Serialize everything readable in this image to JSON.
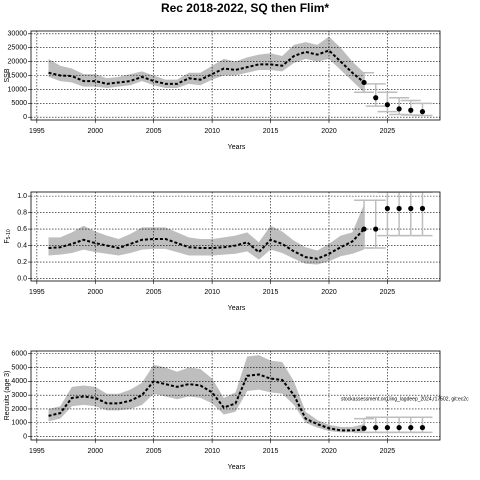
{
  "title": "Rec 2018-2022, SQ then Flim*",
  "chart_data": [
    {
      "type": "line",
      "ylabel": "SSB",
      "xlabel": "Years",
      "x": [
        1996,
        1997,
        1998,
        1999,
        2000,
        2001,
        2002,
        2003,
        2004,
        2005,
        2006,
        2007,
        2008,
        2009,
        2010,
        2011,
        2012,
        2013,
        2014,
        2015,
        2016,
        2017,
        2018,
        2019,
        2020,
        2021,
        2022,
        2023
      ],
      "values": [
        16000,
        15000,
        14800,
        13000,
        13000,
        12000,
        12500,
        13000,
        14500,
        13000,
        12000,
        12000,
        14000,
        13500,
        15500,
        17500,
        17000,
        18000,
        19000,
        19000,
        18500,
        22000,
        23500,
        22500,
        24000,
        20000,
        16000,
        12500
      ],
      "lower": [
        14500,
        13000,
        12500,
        11000,
        11000,
        10500,
        11000,
        11500,
        13000,
        11500,
        10500,
        10500,
        12000,
        11500,
        13500,
        15000,
        15000,
        16000,
        17000,
        17000,
        16500,
        19500,
        21000,
        20000,
        21000,
        17000,
        13000,
        9000
      ],
      "upper": [
        21000,
        18500,
        17500,
        15500,
        15500,
        14000,
        14500,
        15500,
        16500,
        15000,
        13500,
        13500,
        16000,
        16000,
        18500,
        21000,
        20000,
        21500,
        22500,
        23000,
        22000,
        26000,
        27000,
        26000,
        29000,
        25000,
        20000,
        16000
      ],
      "projection": {
        "x": [
          2023,
          2024,
          2025,
          2026,
          2027,
          2028
        ],
        "values": [
          12500,
          7000,
          4500,
          3000,
          2500,
          2000
        ],
        "lower": [
          9000,
          4000,
          2000,
          1000,
          800,
          600
        ],
        "upper": [
          16000,
          12000,
          9000,
          7000,
          6000,
          5000
        ]
      },
      "xlim": [
        1994.5,
        2029.5
      ],
      "xticks": [
        1995,
        2000,
        2005,
        2010,
        2015,
        2020,
        2025
      ],
      "ylim": [
        -1000,
        31000
      ],
      "yticks": [
        0,
        5000,
        10000,
        15000,
        20000,
        25000,
        30000
      ],
      "grid": true,
      "line_color": "#000000",
      "band_color": "#bebebe",
      "errorbar_color": "#bebebe"
    },
    {
      "type": "line",
      "ylabel": "F",
      "ylabel_sub": "5-10",
      "xlabel": "Years",
      "x": [
        1996,
        1997,
        1998,
        1999,
        2000,
        2001,
        2002,
        2003,
        2004,
        2005,
        2006,
        2007,
        2008,
        2009,
        2010,
        2011,
        2012,
        2013,
        2014,
        2015,
        2016,
        2017,
        2018,
        2019,
        2020,
        2021,
        2022,
        2023
      ],
      "values": [
        0.37,
        0.38,
        0.42,
        0.47,
        0.43,
        0.4,
        0.37,
        0.42,
        0.47,
        0.48,
        0.48,
        0.43,
        0.38,
        0.37,
        0.37,
        0.38,
        0.4,
        0.44,
        0.32,
        0.47,
        0.42,
        0.33,
        0.26,
        0.24,
        0.3,
        0.38,
        0.45,
        0.6
      ],
      "lower": [
        0.28,
        0.29,
        0.31,
        0.35,
        0.32,
        0.3,
        0.28,
        0.31,
        0.35,
        0.36,
        0.36,
        0.32,
        0.28,
        0.28,
        0.28,
        0.29,
        0.3,
        0.33,
        0.23,
        0.35,
        0.31,
        0.24,
        0.18,
        0.17,
        0.21,
        0.27,
        0.3,
        0.35
      ],
      "upper": [
        0.5,
        0.5,
        0.56,
        0.64,
        0.57,
        0.52,
        0.48,
        0.54,
        0.62,
        0.62,
        0.62,
        0.56,
        0.5,
        0.48,
        0.48,
        0.5,
        0.52,
        0.56,
        0.44,
        0.64,
        0.57,
        0.46,
        0.38,
        0.34,
        0.42,
        0.52,
        0.56,
        0.9
      ],
      "projection": {
        "x": [
          2023,
          2024,
          2025,
          2026,
          2027,
          2028
        ],
        "values": [
          0.6,
          0.6,
          0.85,
          0.85,
          0.85,
          0.85
        ],
        "lower": [
          0.37,
          0.37,
          0.52,
          0.52,
          0.52,
          0.52
        ],
        "upper": [
          0.95,
          0.95,
          1.05,
          1.05,
          1.05,
          1.05
        ]
      },
      "xlim": [
        1994.5,
        2029.5
      ],
      "xticks": [
        1995,
        2000,
        2005,
        2010,
        2015,
        2020,
        2025
      ],
      "ylim": [
        -0.03,
        1.05
      ],
      "yticks": [
        {
          "value": 0,
          "label": "0.0"
        },
        0.2,
        0.4,
        0.6,
        0.8,
        {
          "value": 1,
          "label": "1.0"
        }
      ],
      "grid": true,
      "line_color": "#000000",
      "band_color": "#bebebe",
      "errorbar_color": "#bebebe"
    },
    {
      "type": "line",
      "ylabel": "Recruits (age 3)",
      "xlabel": "Years",
      "annotation": "stockassessment.org,ling_lagdeep_2024,r17502, git:ec2c",
      "x": [
        1996,
        1997,
        1998,
        1999,
        2000,
        2001,
        2002,
        2003,
        2004,
        2005,
        2006,
        2007,
        2008,
        2009,
        2010,
        2011,
        2012,
        2013,
        2014,
        2015,
        2016,
        2017,
        2018,
        2019,
        2020,
        2021,
        2022,
        2023
      ],
      "values": [
        1500,
        1700,
        2800,
        2900,
        2800,
        2400,
        2400,
        2600,
        3000,
        4000,
        3800,
        3600,
        3800,
        3700,
        3200,
        2100,
        2400,
        4400,
        4500,
        4200,
        4100,
        3000,
        1300,
        900,
        600,
        450,
        450,
        500
      ],
      "lower": [
        1100,
        1300,
        2200,
        2300,
        2200,
        1900,
        1900,
        2000,
        2300,
        3100,
        2900,
        2700,
        2900,
        2800,
        2400,
        1600,
        1800,
        3300,
        3400,
        3200,
        3100,
        2300,
        1000,
        650,
        400,
        300,
        300,
        250
      ],
      "upper": [
        2000,
        2200,
        3600,
        3700,
        3600,
        3100,
        3100,
        3400,
        3900,
        5200,
        5000,
        4700,
        5000,
        4900,
        4200,
        2800,
        3200,
        5800,
        5900,
        5500,
        5400,
        4000,
        1800,
        1200,
        850,
        700,
        700,
        900
      ],
      "projection": {
        "x": [
          2023,
          2024,
          2025,
          2026,
          2027,
          2028
        ],
        "values": [
          600,
          650,
          650,
          650,
          650,
          650
        ],
        "lower": [
          300,
          300,
          300,
          300,
          300,
          300
        ],
        "upper": [
          1300,
          1400,
          1400,
          1400,
          1400,
          1400
        ]
      },
      "xlim": [
        1994.5,
        2029.5
      ],
      "xticks": [
        1995,
        2000,
        2005,
        2010,
        2015,
        2020,
        2025
      ],
      "ylim": [
        -250,
        6200
      ],
      "yticks": [
        0,
        1000,
        2000,
        3000,
        4000,
        5000,
        6000
      ],
      "grid": true,
      "line_color": "#000000",
      "band_color": "#bebebe",
      "errorbar_color": "#bebebe"
    }
  ]
}
